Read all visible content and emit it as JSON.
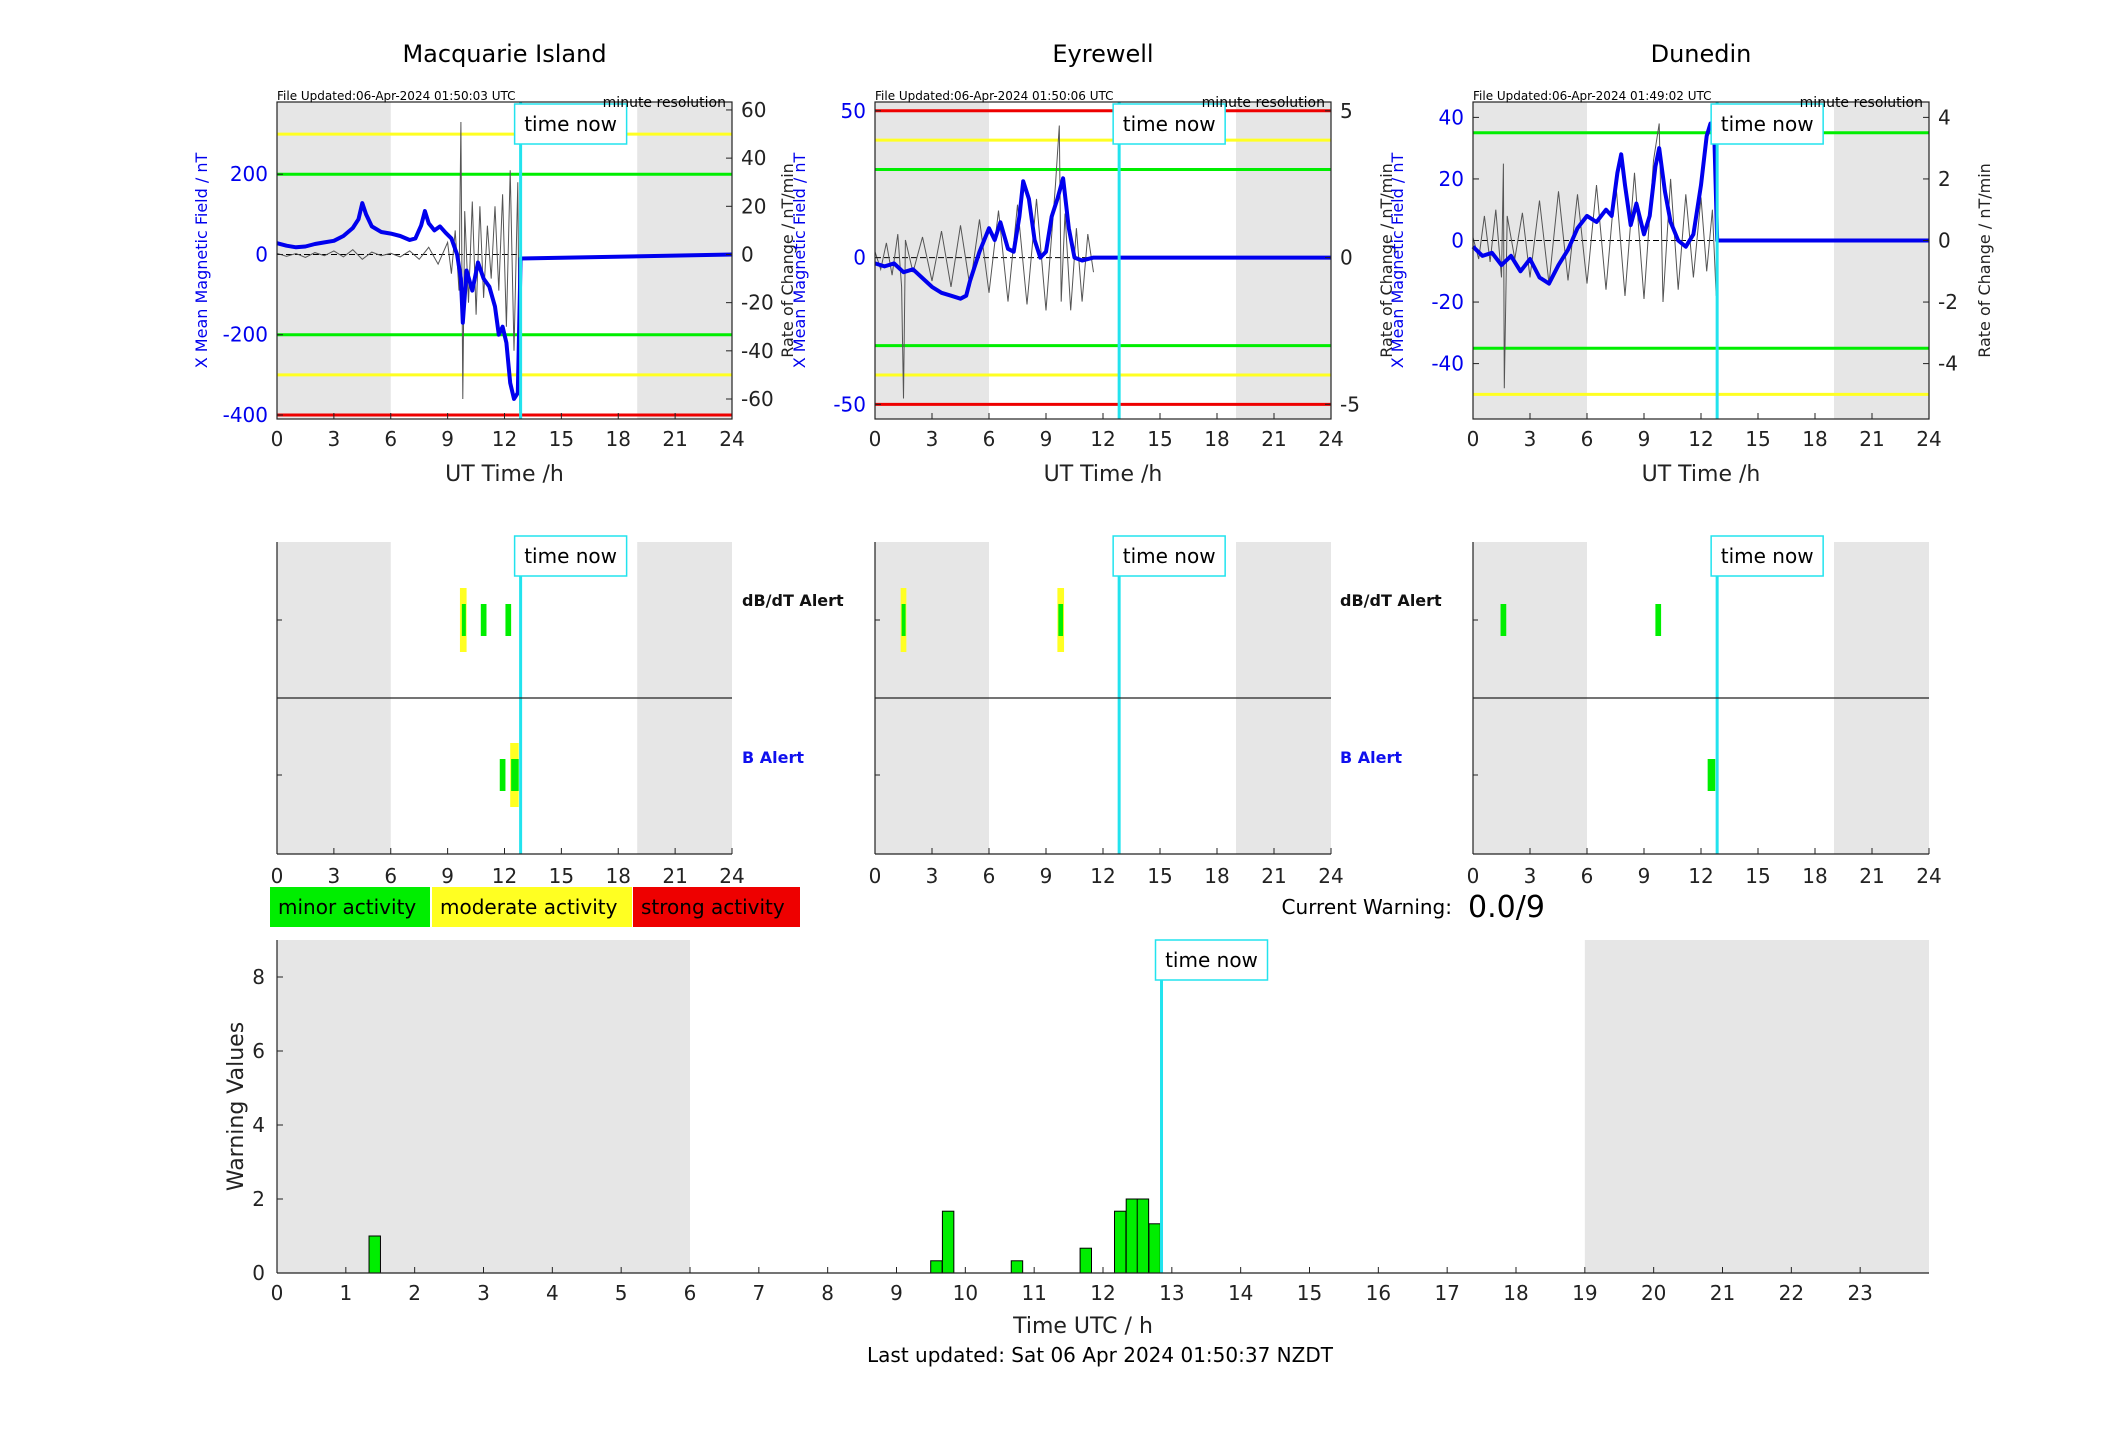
{
  "colors": {
    "shade": "#e6e6e6",
    "blue": "#0000ee",
    "cyan": "#22e3ee",
    "green": "#00ee00",
    "yellow": "#ffff22",
    "red": "#ee0000",
    "grey": "#555555",
    "alert_blue": "#1010ee"
  },
  "footer": {
    "last_updated": "Last updated: Sat 06 Apr 2024 01:50:37 NZDT"
  },
  "current_warning": {
    "label": "Current Warning:",
    "value": "0.0/9"
  },
  "time_now_label": "time now",
  "time_now_hour": 12.85,
  "legend": [
    {
      "label": "minor activity",
      "color": "#00ee00"
    },
    {
      "label": "moderate activity",
      "color": "#ffff22"
    },
    {
      "label": "strong activity",
      "color": "#ee0000"
    }
  ],
  "alert_row_labels": {
    "dbdt": "dB/dT Alert",
    "b": "B Alert"
  },
  "chart_data": [
    {
      "id": "macquarie",
      "type": "line",
      "title": "Macquarie Island",
      "file_updated": "File Updated:06-Apr-2024 01:50:03 UTC",
      "resolution": "minute resolution",
      "xlabel": "UT Time /h",
      "ylabel": "X Mean Magnetic Field / nT",
      "ylabel_right": "Rate of Change / nT/min",
      "xlim": [
        0,
        24
      ],
      "xticks": [
        0,
        3,
        6,
        9,
        12,
        15,
        18,
        21,
        24
      ],
      "ylim": [
        -410,
        380
      ],
      "yticks": [
        -400,
        -200,
        0,
        200
      ],
      "ylim_right": [
        -68.3,
        63.3
      ],
      "yticks_right": [
        -60,
        -40,
        -20,
        0,
        20,
        40,
        60
      ],
      "shade": [
        [
          0,
          6
        ],
        [
          19,
          24
        ]
      ],
      "thresholds": [
        {
          "value": 300,
          "color": "#ffff22"
        },
        {
          "value": 200,
          "color": "#00ee00"
        },
        {
          "value": -200,
          "color": "#00ee00"
        },
        {
          "value": -300,
          "color": "#ffff22"
        },
        {
          "value": -400,
          "color": "#ee0000"
        }
      ],
      "x_series": [
        [
          0,
          28
        ],
        [
          0.5,
          22
        ],
        [
          1,
          18
        ],
        [
          1.5,
          20
        ],
        [
          2,
          26
        ],
        [
          2.5,
          30
        ],
        [
          3,
          34
        ],
        [
          3.5,
          46
        ],
        [
          4,
          66
        ],
        [
          4.3,
          88
        ],
        [
          4.5,
          128
        ],
        [
          4.7,
          100
        ],
        [
          5,
          70
        ],
        [
          5.5,
          56
        ],
        [
          6,
          52
        ],
        [
          6.5,
          46
        ],
        [
          7,
          36
        ],
        [
          7.3,
          40
        ],
        [
          7.6,
          72
        ],
        [
          7.8,
          108
        ],
        [
          8,
          78
        ],
        [
          8.3,
          60
        ],
        [
          8.6,
          70
        ],
        [
          8.9,
          54
        ],
        [
          9.2,
          40
        ],
        [
          9.5,
          0
        ],
        [
          9.7,
          -60
        ],
        [
          9.8,
          -170
        ],
        [
          10,
          -40
        ],
        [
          10.3,
          -90
        ],
        [
          10.6,
          -20
        ],
        [
          10.9,
          -60
        ],
        [
          11.2,
          -80
        ],
        [
          11.5,
          -130
        ],
        [
          11.7,
          -200
        ],
        [
          11.9,
          -180
        ],
        [
          12.1,
          -220
        ],
        [
          12.3,
          -320
        ],
        [
          12.5,
          -360
        ],
        [
          12.7,
          -345
        ],
        [
          12.85,
          -10
        ],
        [
          24,
          0
        ]
      ],
      "roc_series": [
        [
          0,
          0.5
        ],
        [
          0.5,
          -0.8
        ],
        [
          1,
          0.4
        ],
        [
          1.5,
          -1.2
        ],
        [
          2,
          0.8
        ],
        [
          2.5,
          -0.5
        ],
        [
          3,
          1.5
        ],
        [
          3.5,
          -1
        ],
        [
          4,
          2
        ],
        [
          4.5,
          -2
        ],
        [
          5,
          1
        ],
        [
          5.5,
          -0.5
        ],
        [
          6,
          0.5
        ],
        [
          6.5,
          -1
        ],
        [
          7,
          1.5
        ],
        [
          7.5,
          -2
        ],
        [
          8,
          3
        ],
        [
          8.5,
          -4
        ],
        [
          9,
          5
        ],
        [
          9.2,
          -8
        ],
        [
          9.4,
          10
        ],
        [
          9.6,
          -15
        ],
        [
          9.7,
          55
        ],
        [
          9.8,
          -60
        ],
        [
          9.9,
          18
        ],
        [
          10.1,
          -20
        ],
        [
          10.3,
          22
        ],
        [
          10.5,
          -25
        ],
        [
          10.7,
          20
        ],
        [
          10.9,
          -18
        ],
        [
          11.1,
          12
        ],
        [
          11.3,
          -10
        ],
        [
          11.5,
          20
        ],
        [
          11.7,
          -15
        ],
        [
          11.9,
          25
        ],
        [
          12.1,
          -30
        ],
        [
          12.3,
          35
        ],
        [
          12.5,
          -40
        ],
        [
          12.7,
          30
        ],
        [
          12.8,
          -65
        ]
      ],
      "baseline": [
        [
          0,
          0
        ],
        [
          12.8,
          0
        ]
      ],
      "alerts_dbdt": [
        {
          "t0": 9.65,
          "t1": 10.0,
          "level": "moderate"
        },
        {
          "t0": 9.75,
          "t1": 9.95,
          "level": "minor"
        },
        {
          "t0": 10.75,
          "t1": 11.05,
          "level": "minor"
        },
        {
          "t0": 12.05,
          "t1": 12.35,
          "level": "minor"
        }
      ],
      "alerts_b": [
        {
          "t0": 12.3,
          "t1": 12.75,
          "level": "moderate"
        },
        {
          "t0": 11.75,
          "t1": 12.05,
          "level": "minor"
        },
        {
          "t0": 12.35,
          "t1": 12.75,
          "level": "minor"
        }
      ]
    },
    {
      "id": "eyrewell",
      "type": "line",
      "title": "Eyrewell",
      "file_updated": "File Updated:06-Apr-2024 01:50:06 UTC",
      "resolution": "minute resolution",
      "xlabel": "UT Time /h",
      "ylabel": "X Mean Magnetic Field / nT",
      "ylabel_right": "Rate of Change / nT/min",
      "xlim": [
        0,
        24
      ],
      "xticks": [
        0,
        3,
        6,
        9,
        12,
        15,
        18,
        21,
        24
      ],
      "ylim": [
        -55,
        53
      ],
      "yticks": [
        -50,
        0,
        50
      ],
      "ylim_right": [
        -5.5,
        5.3
      ],
      "yticks_right": [
        -5,
        0,
        5
      ],
      "shade": [
        [
          0,
          6
        ],
        [
          19,
          24
        ]
      ],
      "thresholds": [
        {
          "value": 50,
          "color": "#ee0000"
        },
        {
          "value": 40,
          "color": "#ffff22"
        },
        {
          "value": 30,
          "color": "#00ee00"
        },
        {
          "value": -30,
          "color": "#00ee00"
        },
        {
          "value": -40,
          "color": "#ffff22"
        },
        {
          "value": -50,
          "color": "#ee0000"
        }
      ],
      "x_series": [
        [
          0,
          -2
        ],
        [
          0.5,
          -3
        ],
        [
          1,
          -2
        ],
        [
          1.5,
          -5
        ],
        [
          2,
          -4
        ],
        [
          2.5,
          -7
        ],
        [
          3,
          -10
        ],
        [
          3.5,
          -12
        ],
        [
          4,
          -13
        ],
        [
          4.5,
          -14
        ],
        [
          4.8,
          -13
        ],
        [
          5,
          -8
        ],
        [
          5.5,
          2
        ],
        [
          6,
          10
        ],
        [
          6.3,
          6
        ],
        [
          6.6,
          12
        ],
        [
          7,
          3
        ],
        [
          7.3,
          2
        ],
        [
          7.6,
          14
        ],
        [
          7.8,
          26
        ],
        [
          8.1,
          20
        ],
        [
          8.4,
          6
        ],
        [
          8.7,
          0
        ],
        [
          9,
          2
        ],
        [
          9.3,
          14
        ],
        [
          9.6,
          20
        ],
        [
          9.9,
          27
        ],
        [
          10.2,
          10
        ],
        [
          10.5,
          0
        ],
        [
          10.9,
          -1
        ],
        [
          11.5,
          0
        ],
        [
          12.85,
          0
        ],
        [
          24,
          0
        ]
      ],
      "roc_series": [
        [
          0,
          0.2
        ],
        [
          0.3,
          -0.4
        ],
        [
          0.6,
          0.5
        ],
        [
          0.9,
          -0.6
        ],
        [
          1.2,
          0.8
        ],
        [
          1.4,
          -1
        ],
        [
          1.5,
          -4.8
        ],
        [
          1.6,
          0.6
        ],
        [
          2,
          -0.5
        ],
        [
          2.5,
          0.7
        ],
        [
          3,
          -0.8
        ],
        [
          3.5,
          0.9
        ],
        [
          4,
          -1
        ],
        [
          4.5,
          1.1
        ],
        [
          5,
          -1
        ],
        [
          5.5,
          1.3
        ],
        [
          6,
          -1.2
        ],
        [
          6.5,
          1.6
        ],
        [
          7,
          -1.5
        ],
        [
          7.5,
          1.8
        ],
        [
          8,
          -1.6
        ],
        [
          8.5,
          2
        ],
        [
          9,
          -1.8
        ],
        [
          9.5,
          2.5
        ],
        [
          9.7,
          4.5
        ],
        [
          9.8,
          -1.5
        ],
        [
          10,
          1.5
        ],
        [
          10.3,
          -1.8
        ],
        [
          10.6,
          1
        ],
        [
          10.9,
          -1.5
        ],
        [
          11.2,
          0.8
        ],
        [
          11.5,
          -0.5
        ]
      ],
      "baseline": [
        [
          0,
          0
        ],
        [
          11.6,
          0
        ]
      ],
      "alerts_dbdt": [
        {
          "t0": 1.35,
          "t1": 1.65,
          "level": "moderate"
        },
        {
          "t0": 1.4,
          "t1": 1.6,
          "level": "minor"
        },
        {
          "t0": 9.6,
          "t1": 9.95,
          "level": "moderate"
        },
        {
          "t0": 9.65,
          "t1": 9.9,
          "level": "minor"
        }
      ],
      "alerts_b": []
    },
    {
      "id": "dunedin",
      "type": "line",
      "title": "Dunedin",
      "file_updated": "File Updated:06-Apr-2024 01:49:02 UTC",
      "resolution": "minute resolution",
      "xlabel": "UT Time /h",
      "ylabel": "X Mean Magnetic Field / nT",
      "ylabel_right": "Rate of Change / nT/min",
      "xlim": [
        0,
        24
      ],
      "xticks": [
        0,
        3,
        6,
        9,
        12,
        15,
        18,
        21,
        24
      ],
      "ylim": [
        -58,
        45
      ],
      "yticks": [
        -40,
        -20,
        0,
        20,
        40
      ],
      "ylim_right": [
        -5.8,
        4.5
      ],
      "yticks_right": [
        -4,
        -2,
        0,
        2,
        4
      ],
      "shade": [
        [
          0,
          6
        ],
        [
          19,
          24
        ]
      ],
      "thresholds": [
        {
          "value": 35,
          "color": "#00ee00"
        },
        {
          "value": -35,
          "color": "#00ee00"
        },
        {
          "value": -50,
          "color": "#ffff22"
        }
      ],
      "x_series": [
        [
          0,
          -2
        ],
        [
          0.5,
          -5
        ],
        [
          1,
          -4
        ],
        [
          1.5,
          -8
        ],
        [
          2,
          -5
        ],
        [
          2.5,
          -10
        ],
        [
          3,
          -6
        ],
        [
          3.5,
          -12
        ],
        [
          4,
          -14
        ],
        [
          4.5,
          -8
        ],
        [
          5,
          -3
        ],
        [
          5.5,
          4
        ],
        [
          6,
          8
        ],
        [
          6.5,
          6
        ],
        [
          7,
          10
        ],
        [
          7.3,
          8
        ],
        [
          7.6,
          22
        ],
        [
          7.8,
          28
        ],
        [
          8,
          18
        ],
        [
          8.3,
          5
        ],
        [
          8.6,
          12
        ],
        [
          9,
          2
        ],
        [
          9.3,
          8
        ],
        [
          9.6,
          24
        ],
        [
          9.8,
          30
        ],
        [
          10.1,
          16
        ],
        [
          10.4,
          6
        ],
        [
          10.8,
          0
        ],
        [
          11.2,
          -2
        ],
        [
          11.6,
          2
        ],
        [
          12,
          18
        ],
        [
          12.3,
          34
        ],
        [
          12.5,
          38
        ],
        [
          12.7,
          34
        ],
        [
          12.85,
          0
        ],
        [
          24,
          0
        ]
      ],
      "roc_series": [
        [
          0,
          0.1
        ],
        [
          0.3,
          -0.6
        ],
        [
          0.6,
          0.8
        ],
        [
          0.9,
          -0.7
        ],
        [
          1.2,
          1
        ],
        [
          1.5,
          -1.2
        ],
        [
          1.6,
          2.5
        ],
        [
          1.65,
          -4.8
        ],
        [
          1.8,
          0.8
        ],
        [
          2.2,
          -0.6
        ],
        [
          2.6,
          0.9
        ],
        [
          3,
          -1.2
        ],
        [
          3.5,
          1.3
        ],
        [
          4,
          -1.4
        ],
        [
          4.5,
          1.6
        ],
        [
          5,
          -1.3
        ],
        [
          5.5,
          1.5
        ],
        [
          6,
          -1.4
        ],
        [
          6.5,
          1.8
        ],
        [
          7,
          -1.6
        ],
        [
          7.5,
          2
        ],
        [
          8,
          -1.8
        ],
        [
          8.5,
          2.2
        ],
        [
          9,
          -1.9
        ],
        [
          9.5,
          2.6
        ],
        [
          9.8,
          3.8
        ],
        [
          10,
          -2
        ],
        [
          10.4,
          2
        ],
        [
          10.8,
          -1.6
        ],
        [
          11.2,
          1.5
        ],
        [
          11.6,
          -1.2
        ],
        [
          12,
          1.4
        ],
        [
          12.3,
          -1
        ],
        [
          12.6,
          1
        ],
        [
          12.8,
          -1.8
        ]
      ],
      "baseline": [
        [
          0,
          0
        ],
        [
          12.8,
          0
        ]
      ],
      "alerts_dbdt": [
        {
          "t0": 1.45,
          "t1": 1.75,
          "level": "minor"
        },
        {
          "t0": 9.6,
          "t1": 9.9,
          "level": "minor"
        }
      ],
      "alerts_b": [
        {
          "t0": 12.35,
          "t1": 12.75,
          "level": "minor"
        }
      ]
    },
    {
      "id": "warning",
      "type": "bar",
      "xlabel": "Time UTC / h",
      "ylabel": "Warning Values",
      "xlim": [
        0,
        24
      ],
      "xticks": [
        0,
        1,
        2,
        3,
        4,
        5,
        6,
        7,
        8,
        9,
        10,
        11,
        12,
        13,
        14,
        15,
        16,
        17,
        18,
        19,
        20,
        21,
        22,
        23
      ],
      "ylim": [
        0,
        9
      ],
      "yticks": [
        0,
        2,
        4,
        6,
        8
      ],
      "shade": [
        [
          0,
          6
        ],
        [
          19,
          24
        ]
      ],
      "bar_width": 0.166,
      "bars": [
        {
          "x": 1.42,
          "value": 1.0
        },
        {
          "x": 9.58,
          "value": 0.33
        },
        {
          "x": 9.75,
          "value": 1.67
        },
        {
          "x": 10.75,
          "value": 0.33
        },
        {
          "x": 11.75,
          "value": 0.67
        },
        {
          "x": 12.25,
          "value": 1.67
        },
        {
          "x": 12.42,
          "value": 2.0
        },
        {
          "x": 12.58,
          "value": 2.0
        },
        {
          "x": 12.75,
          "value": 1.33
        }
      ]
    }
  ]
}
